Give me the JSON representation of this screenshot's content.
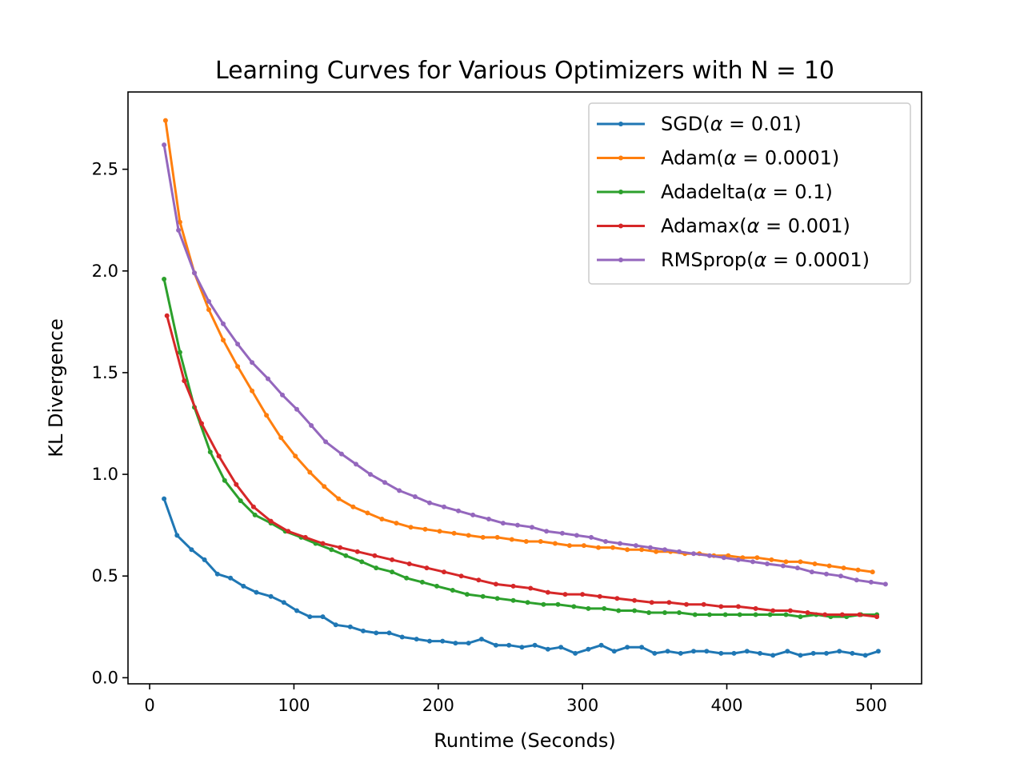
{
  "chart_data": {
    "type": "line",
    "title": "Learning Curves for Various Optimizers with N = 10",
    "xlabel": "Runtime (Seconds)",
    "ylabel": "KL Divergence",
    "xlim": [
      -15,
      535
    ],
    "ylim": [
      -0.03,
      2.88
    ],
    "xticks": [
      0,
      100,
      200,
      300,
      400,
      500
    ],
    "xtick_labels": [
      "0",
      "100",
      "200",
      "300",
      "400",
      "500"
    ],
    "yticks": [
      0.0,
      0.5,
      1.0,
      1.5,
      2.0,
      2.5
    ],
    "ytick_labels": [
      "0.0",
      "0.5",
      "1.0",
      "1.5",
      "2.0",
      "2.5"
    ],
    "grid": false,
    "legend_position": "top-right",
    "series": [
      {
        "name": "SGD(α = 0.01)",
        "legend_prefix": "SGD(",
        "legend_suffix": " = 0.01)",
        "color": "#1f77b4",
        "x": [
          10,
          19,
          29,
          38,
          47,
          56,
          65,
          74,
          84,
          93,
          102,
          111,
          120,
          129,
          139,
          148,
          157,
          166,
          175,
          185,
          194,
          203,
          212,
          221,
          230,
          240,
          249,
          258,
          267,
          276,
          285,
          295,
          304,
          313,
          322,
          331,
          341,
          350,
          359,
          368,
          377,
          386,
          396,
          405,
          414,
          423,
          432,
          442,
          451,
          460,
          469,
          478,
          487,
          496,
          505
        ],
        "y": [
          0.88,
          0.7,
          0.63,
          0.58,
          0.51,
          0.49,
          0.45,
          0.42,
          0.4,
          0.37,
          0.33,
          0.3,
          0.3,
          0.26,
          0.25,
          0.23,
          0.22,
          0.22,
          0.2,
          0.19,
          0.18,
          0.18,
          0.17,
          0.17,
          0.19,
          0.16,
          0.16,
          0.15,
          0.16,
          0.14,
          0.15,
          0.12,
          0.14,
          0.16,
          0.13,
          0.15,
          0.15,
          0.12,
          0.13,
          0.12,
          0.13,
          0.13,
          0.12,
          0.12,
          0.13,
          0.12,
          0.11,
          0.13,
          0.11,
          0.12,
          0.12,
          0.13,
          0.12,
          0.11,
          0.13
        ]
      },
      {
        "name": "Adam(α = 0.0001)",
        "legend_prefix": "Adam(",
        "legend_suffix": " = 0.0001)",
        "color": "#ff7f0e",
        "x": [
          11,
          21,
          31,
          41,
          51,
          61,
          71,
          81,
          91,
          101,
          111,
          121,
          131,
          141,
          151,
          161,
          171,
          181,
          191,
          201,
          211,
          221,
          231,
          241,
          251,
          261,
          271,
          281,
          291,
          301,
          311,
          321,
          331,
          341,
          351,
          361,
          371,
          381,
          391,
          401,
          411,
          421,
          431,
          441,
          451,
          461,
          471,
          481,
          491,
          501
        ],
        "y": [
          2.74,
          2.24,
          1.99,
          1.81,
          1.66,
          1.53,
          1.41,
          1.29,
          1.18,
          1.09,
          1.01,
          0.94,
          0.88,
          0.84,
          0.81,
          0.78,
          0.76,
          0.74,
          0.73,
          0.72,
          0.71,
          0.7,
          0.69,
          0.69,
          0.68,
          0.67,
          0.67,
          0.66,
          0.65,
          0.65,
          0.64,
          0.64,
          0.63,
          0.63,
          0.62,
          0.62,
          0.61,
          0.61,
          0.6,
          0.6,
          0.59,
          0.59,
          0.58,
          0.57,
          0.57,
          0.56,
          0.55,
          0.54,
          0.53,
          0.52
        ]
      },
      {
        "name": "Adadelta(α = 0.1)",
        "legend_prefix": "Adadelta(",
        "legend_suffix": " = 0.1)",
        "color": "#2ca02c",
        "x": [
          10,
          21,
          31,
          42,
          52,
          63,
          73,
          84,
          94,
          105,
          115,
          126,
          136,
          147,
          157,
          168,
          178,
          189,
          199,
          210,
          220,
          231,
          241,
          252,
          262,
          273,
          283,
          294,
          304,
          315,
          325,
          336,
          346,
          357,
          367,
          378,
          388,
          399,
          409,
          420,
          430,
          441,
          451,
          462,
          472,
          483,
          493,
          504
        ],
        "y": [
          1.96,
          1.6,
          1.33,
          1.11,
          0.97,
          0.87,
          0.8,
          0.76,
          0.72,
          0.69,
          0.66,
          0.63,
          0.6,
          0.57,
          0.54,
          0.52,
          0.49,
          0.47,
          0.45,
          0.43,
          0.41,
          0.4,
          0.39,
          0.38,
          0.37,
          0.36,
          0.36,
          0.35,
          0.34,
          0.34,
          0.33,
          0.33,
          0.32,
          0.32,
          0.32,
          0.31,
          0.31,
          0.31,
          0.31,
          0.31,
          0.31,
          0.31,
          0.3,
          0.31,
          0.3,
          0.3,
          0.31,
          0.31
        ]
      },
      {
        "name": "Adamax(α = 0.001)",
        "legend_prefix": "Adamax(",
        "legend_suffix": " = 0.001)",
        "color": "#d62728",
        "x": [
          12,
          24,
          36,
          48,
          60,
          72,
          84,
          96,
          108,
          120,
          132,
          144,
          156,
          168,
          180,
          192,
          204,
          216,
          228,
          240,
          252,
          264,
          276,
          288,
          300,
          312,
          324,
          336,
          348,
          360,
          372,
          384,
          396,
          408,
          420,
          432,
          444,
          456,
          468,
          480,
          492,
          504
        ],
        "y": [
          1.78,
          1.46,
          1.25,
          1.09,
          0.95,
          0.84,
          0.77,
          0.72,
          0.69,
          0.66,
          0.64,
          0.62,
          0.6,
          0.58,
          0.56,
          0.54,
          0.52,
          0.5,
          0.48,
          0.46,
          0.45,
          0.44,
          0.42,
          0.41,
          0.41,
          0.4,
          0.39,
          0.38,
          0.37,
          0.37,
          0.36,
          0.36,
          0.35,
          0.35,
          0.34,
          0.33,
          0.33,
          0.32,
          0.31,
          0.31,
          0.31,
          0.3
        ]
      },
      {
        "name": "RMSprop(α = 0.0001)",
        "legend_prefix": "RMSprop(",
        "legend_suffix": " = 0.0001)",
        "color": "#9467bd",
        "x": [
          10,
          20,
          31,
          41,
          51,
          61,
          71,
          82,
          92,
          102,
          112,
          122,
          133,
          143,
          153,
          163,
          173,
          184,
          194,
          204,
          214,
          224,
          235,
          245,
          255,
          265,
          275,
          286,
          296,
          306,
          316,
          326,
          337,
          347,
          357,
          367,
          377,
          388,
          398,
          408,
          418,
          428,
          439,
          449,
          459,
          469,
          479,
          490,
          500,
          510
        ],
        "y": [
          2.62,
          2.2,
          1.99,
          1.85,
          1.74,
          1.64,
          1.55,
          1.47,
          1.39,
          1.32,
          1.24,
          1.16,
          1.1,
          1.05,
          1.0,
          0.96,
          0.92,
          0.89,
          0.86,
          0.84,
          0.82,
          0.8,
          0.78,
          0.76,
          0.75,
          0.74,
          0.72,
          0.71,
          0.7,
          0.69,
          0.67,
          0.66,
          0.65,
          0.64,
          0.63,
          0.62,
          0.61,
          0.6,
          0.59,
          0.58,
          0.57,
          0.56,
          0.55,
          0.54,
          0.52,
          0.51,
          0.5,
          0.48,
          0.47,
          0.46
        ]
      }
    ]
  }
}
